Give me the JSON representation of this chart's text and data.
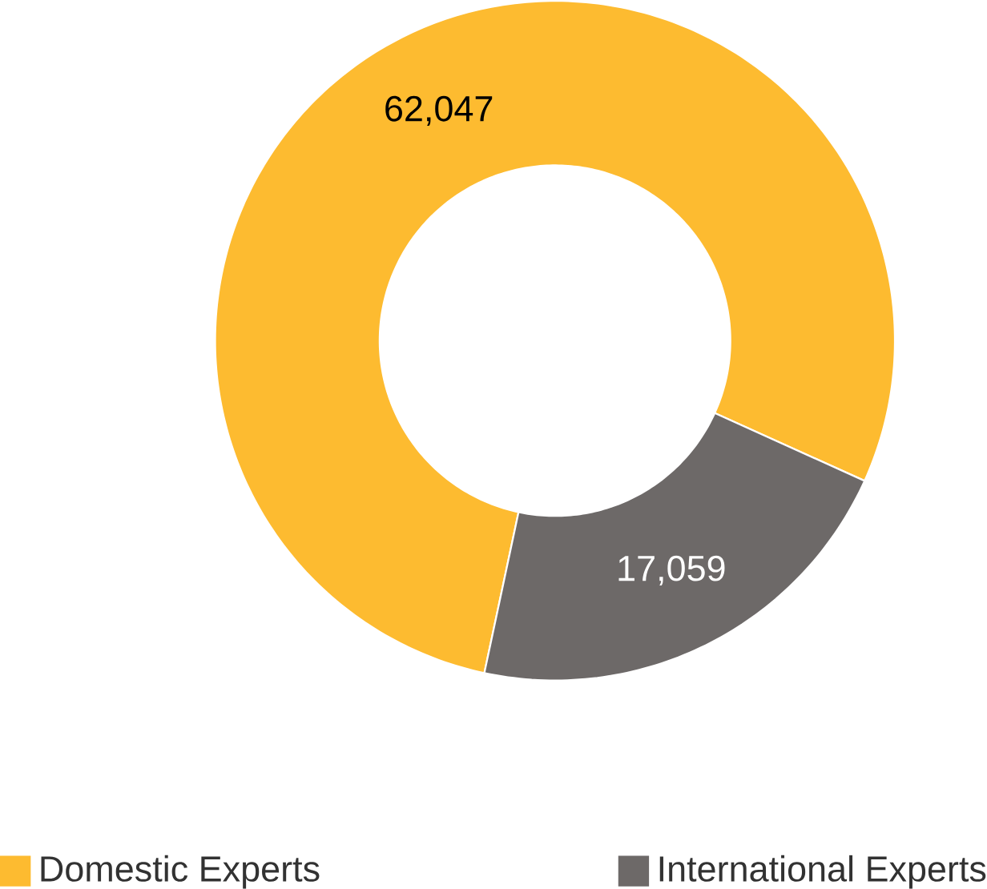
{
  "chart_data": {
    "type": "donut",
    "categories": [
      "Domestic Experts",
      "International Experts"
    ],
    "values": [
      62047,
      17059
    ],
    "colors": [
      "#fdbb30",
      "#6d6968"
    ],
    "value_labels": [
      "62,047",
      "17,059"
    ],
    "legend": "bottom"
  }
}
